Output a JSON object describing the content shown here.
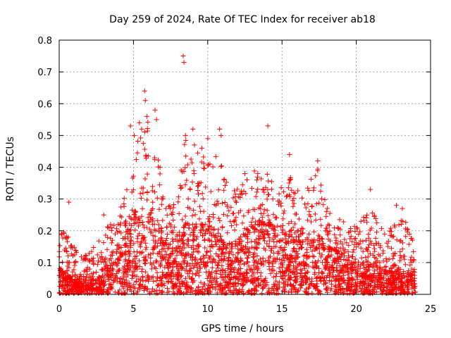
{
  "chart_data": {
    "type": "scatter",
    "title": "Day 259 of 2024, Rate Of TEC Index for receiver ab18",
    "xlabel": "GPS time / hours",
    "ylabel": "ROTI / TECUs",
    "xlim": [
      0,
      25
    ],
    "ylim": [
      0,
      0.8
    ],
    "x_ticks": [
      0,
      5,
      10,
      15,
      20,
      25
    ],
    "x_tick_labels": [
      "0",
      "5",
      "10",
      "15",
      "20",
      "25"
    ],
    "y_ticks": [
      0,
      0.1,
      0.2,
      0.3,
      0.4,
      0.5,
      0.6,
      0.7,
      0.8
    ],
    "y_tick_labels": [
      "0",
      "0.1",
      "0.2",
      "0.3",
      "0.4",
      "0.5",
      "0.6",
      "0.7",
      "0.8"
    ],
    "grid": true,
    "marker": "+",
    "color": "#ff0000",
    "series": [
      {
        "values_note_visible": "",
        "envelope": [
          [
            0.0,
            0.08,
            0.2
          ],
          [
            0.5,
            0.04,
            0.2
          ],
          [
            1.0,
            0.03,
            0.15
          ],
          [
            1.5,
            0.03,
            0.12
          ],
          [
            2.0,
            0.03,
            0.13
          ],
          [
            2.5,
            0.03,
            0.16
          ],
          [
            3.0,
            0.05,
            0.19
          ],
          [
            3.5,
            0.08,
            0.25
          ],
          [
            4.0,
            0.1,
            0.27
          ],
          [
            4.5,
            0.13,
            0.32
          ],
          [
            5.0,
            0.15,
            0.45
          ],
          [
            5.5,
            0.17,
            0.52
          ],
          [
            6.0,
            0.16,
            0.55
          ],
          [
            6.5,
            0.16,
            0.5
          ],
          [
            7.0,
            0.12,
            0.35
          ],
          [
            7.5,
            0.1,
            0.28
          ],
          [
            8.0,
            0.12,
            0.33
          ],
          [
            8.5,
            0.14,
            0.5
          ],
          [
            9.0,
            0.14,
            0.5
          ],
          [
            9.5,
            0.14,
            0.42
          ],
          [
            10.0,
            0.14,
            0.45
          ],
          [
            10.5,
            0.13,
            0.48
          ],
          [
            11.0,
            0.11,
            0.4
          ],
          [
            11.5,
            0.1,
            0.32
          ],
          [
            12.0,
            0.11,
            0.34
          ],
          [
            12.5,
            0.13,
            0.38
          ],
          [
            13.0,
            0.14,
            0.4
          ],
          [
            13.5,
            0.15,
            0.38
          ],
          [
            14.0,
            0.15,
            0.4
          ],
          [
            14.5,
            0.14,
            0.38
          ],
          [
            15.0,
            0.13,
            0.36
          ],
          [
            15.5,
            0.13,
            0.38
          ],
          [
            16.0,
            0.12,
            0.34
          ],
          [
            16.5,
            0.11,
            0.3
          ],
          [
            17.0,
            0.12,
            0.38
          ],
          [
            17.5,
            0.12,
            0.4
          ],
          [
            18.0,
            0.1,
            0.3
          ],
          [
            18.5,
            0.09,
            0.24
          ],
          [
            19.0,
            0.08,
            0.24
          ],
          [
            19.5,
            0.07,
            0.22
          ],
          [
            20.0,
            0.07,
            0.22
          ],
          [
            20.5,
            0.06,
            0.25
          ],
          [
            21.0,
            0.06,
            0.28
          ],
          [
            21.5,
            0.06,
            0.22
          ],
          [
            22.0,
            0.05,
            0.2
          ],
          [
            22.5,
            0.05,
            0.22
          ],
          [
            23.0,
            0.05,
            0.24
          ],
          [
            23.5,
            0.04,
            0.22
          ],
          [
            24.0,
            0.04,
            0.14
          ]
        ],
        "spikes": [
          [
            0.65,
            0.29
          ],
          [
            3.0,
            0.25
          ],
          [
            4.8,
            0.53
          ],
          [
            5.05,
            0.5
          ],
          [
            5.4,
            0.54
          ],
          [
            5.55,
            0.52
          ],
          [
            5.75,
            0.64
          ],
          [
            5.8,
            0.61
          ],
          [
            5.9,
            0.56
          ],
          [
            6.45,
            0.58
          ],
          [
            6.55,
            0.55
          ],
          [
            8.35,
            0.75
          ],
          [
            8.4,
            0.73
          ],
          [
            8.5,
            0.5
          ],
          [
            9.0,
            0.52
          ],
          [
            9.1,
            0.47
          ],
          [
            9.6,
            0.46
          ],
          [
            10.0,
            0.49
          ],
          [
            10.8,
            0.52
          ],
          [
            10.9,
            0.5
          ],
          [
            12.5,
            0.38
          ],
          [
            14.05,
            0.53
          ],
          [
            15.5,
            0.44
          ],
          [
            17.4,
            0.42
          ],
          [
            20.95,
            0.33
          ],
          [
            22.7,
            0.28
          ],
          [
            23.1,
            0.27
          ]
        ]
      }
    ]
  }
}
